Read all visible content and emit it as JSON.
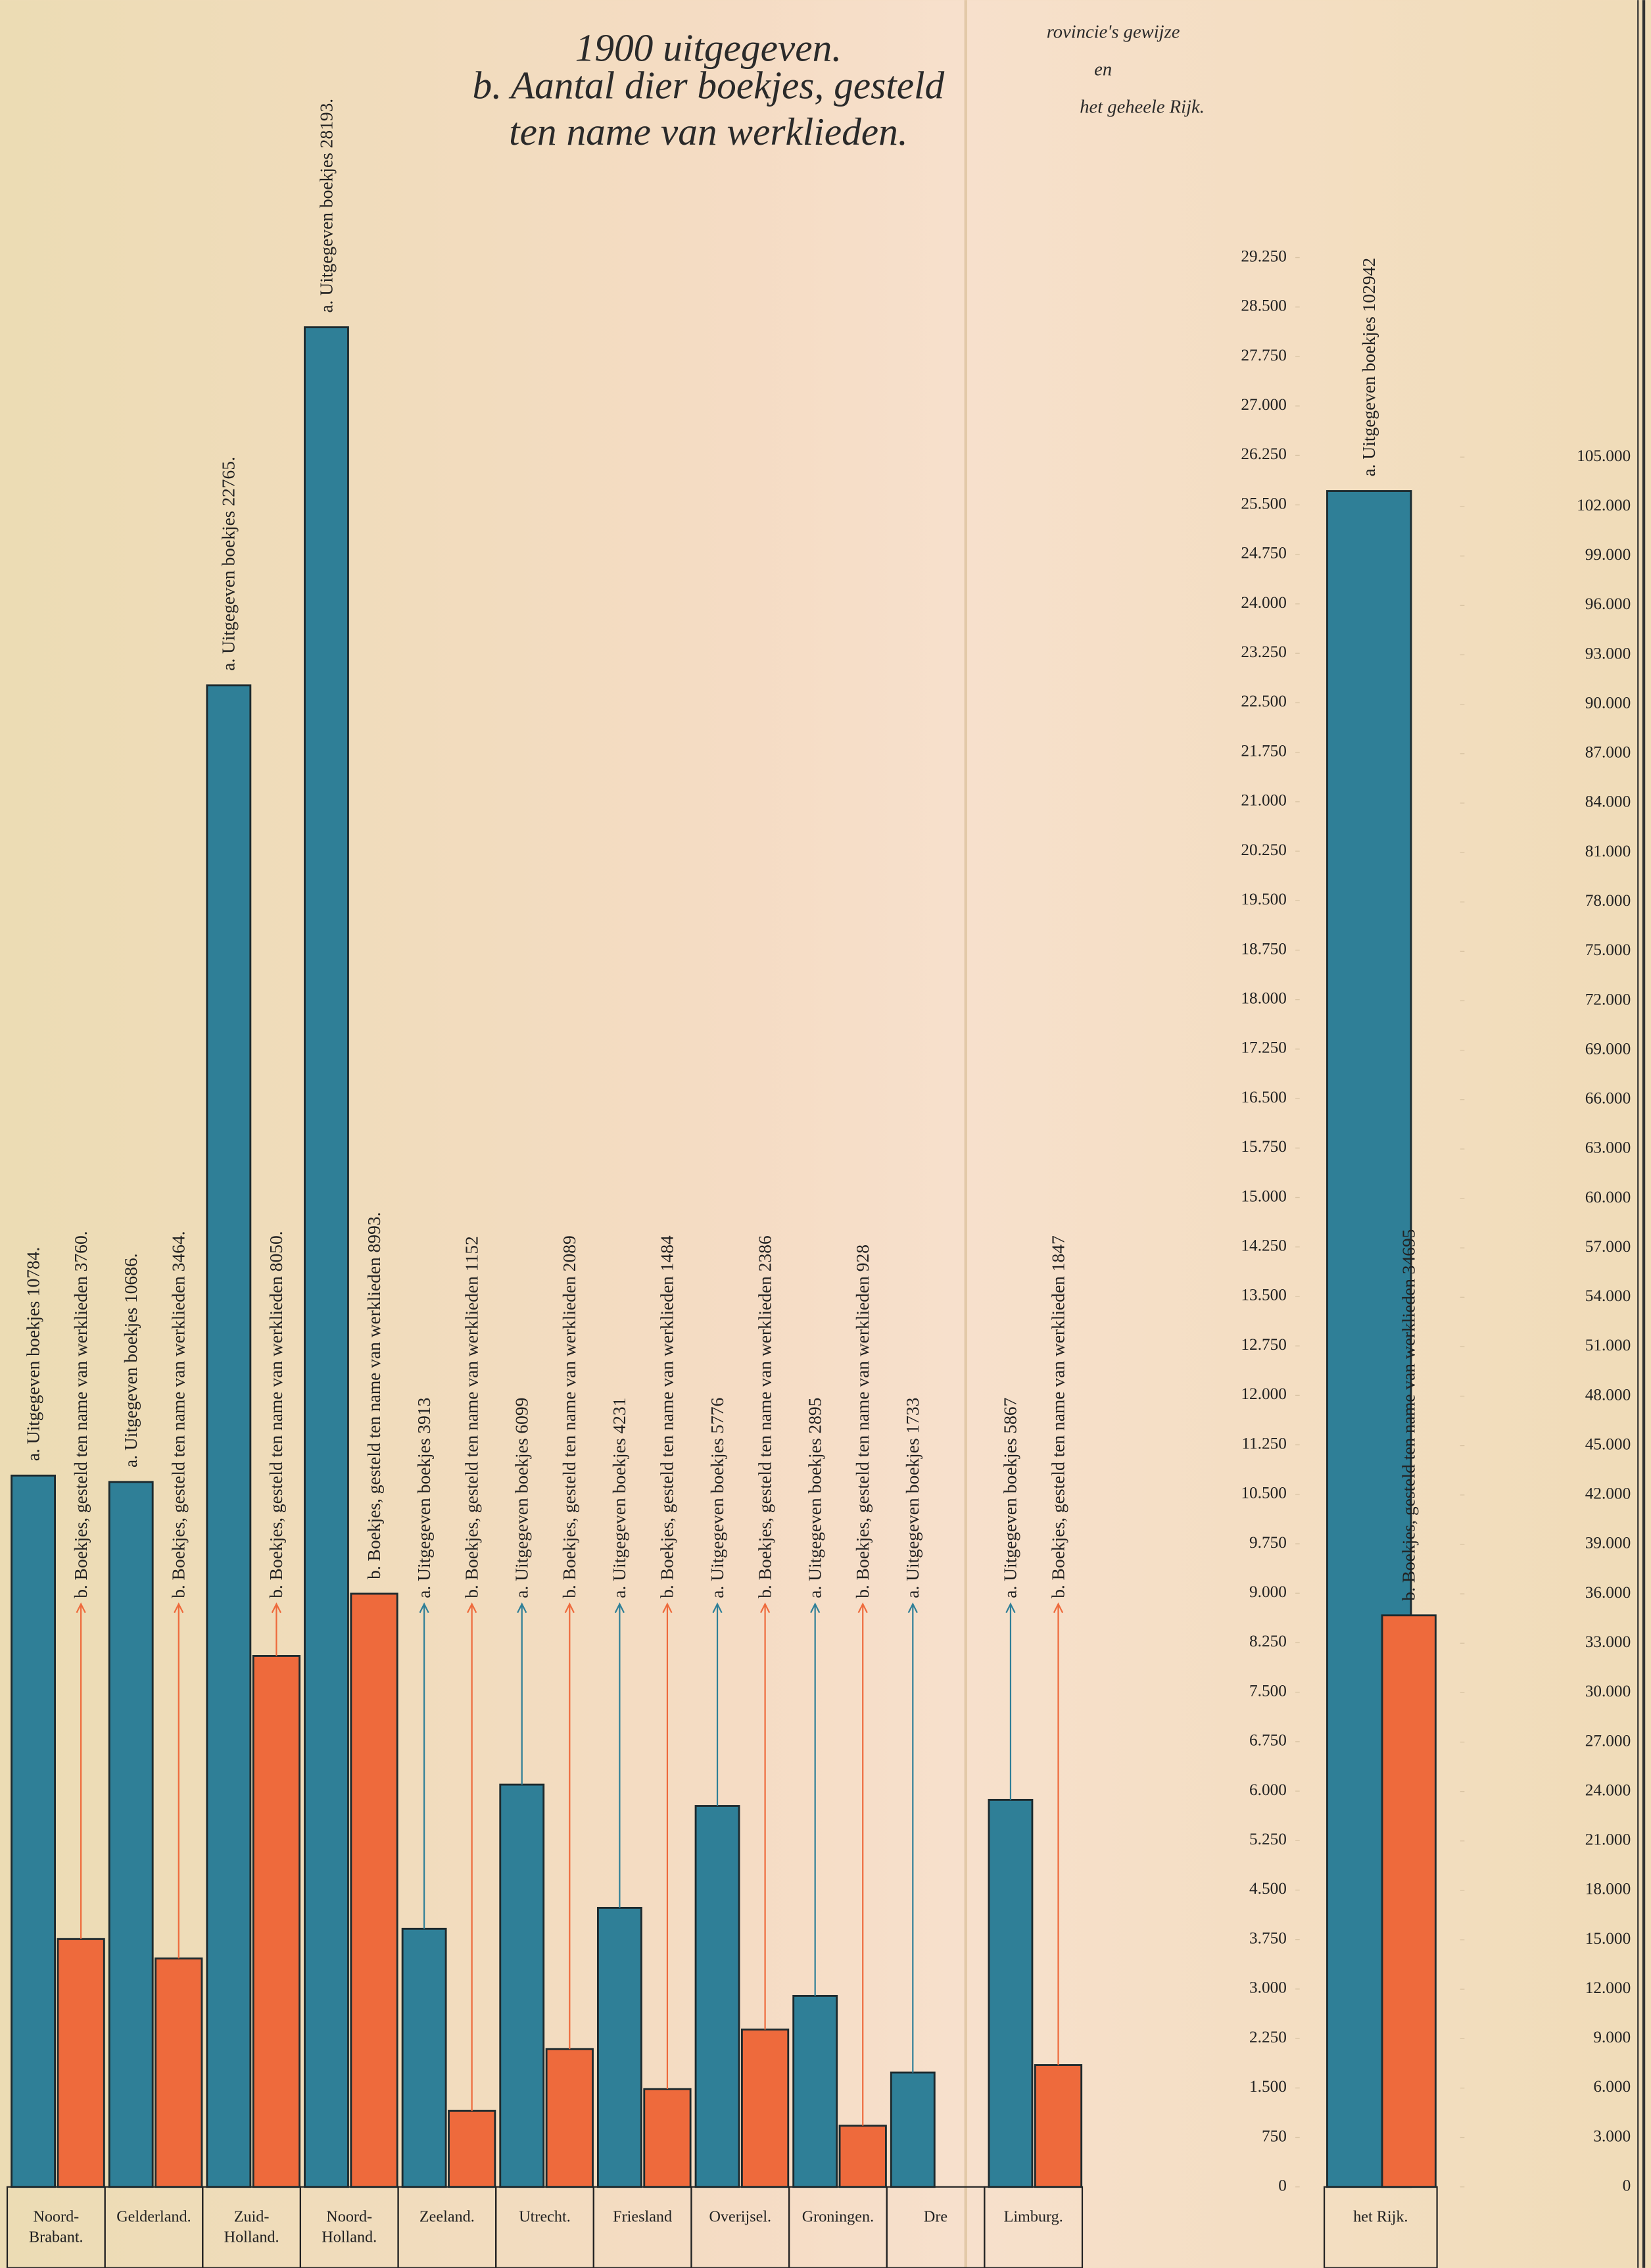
{
  "chart_data": [
    {
      "type": "bar",
      "title_lines": [
        "1900 uitgegeven.",
        "b. Aantal dier boekjes, gesteld",
        "ten name van werklieden."
      ],
      "subtitle_lines": [
        "rovincie's gewijze",
        "en",
        "het geheele Rijk."
      ],
      "categories": [
        "Noord-Brabant.",
        "Gelderland.",
        "Zuid-Holland.",
        "Noord-Holland.",
        "Zeeland.",
        "Utrecht.",
        "Friesland",
        "Overijsel.",
        "Groningen.",
        "Dre",
        "Limburg."
      ],
      "series": [
        {
          "color": "#2f7f97",
          "values": [
            10784,
            10686,
            22765,
            28193,
            3913,
            6099,
            4231,
            5776,
            2895,
            1733,
            5867
          ],
          "value_labels": [
            "a. Uitgegeven boekjes 10784.",
            "a. Uitgegeven boekjes 10686.",
            "a. Uitgegeven boekjes 22765.",
            "a. Uitgegeven boekjes 28193.",
            "a. Uitgegeven boekjes 3913",
            "a. Uitgegeven boekjes 6099",
            "a. Uitgegeven boekjes 4231",
            "a. Uitgegeven boekjes 5776",
            "a. Uitgegeven boekjes 2895",
            "a. Uitgegeven boekjes 1733",
            "a. Uitgegeven boekjes 5867"
          ]
        },
        {
          "color": "#ee6a3c",
          "values": [
            3760,
            3464,
            8050,
            8993,
            1152,
            2089,
            1484,
            2386,
            928,
            null,
            1847
          ],
          "value_labels": [
            "b. Boekjes, gesteld ten name van werklieden 3760.",
            "b. Boekjes, gesteld ten name van werklieden 3464.",
            "b. Boekjes, gesteld ten name van werklieden 8050.",
            "b. Boekjes, gesteld ten name van werklieden 8993.",
            "b. Boekjes, gesteld ten name van werklieden 1152",
            "b. Boekjes, gesteld ten name van werklieden 2089",
            "b. Boekjes, gesteld ten name van werklieden 1484",
            "b. Boekjes, gesteld ten name van werklieden 2386",
            "b. Boekjes, gesteld ten name van werklieden 928",
            null,
            "b. Boekjes, gesteld ten name van werklieden 1847"
          ]
        }
      ],
      "ylim": [
        0,
        29250
      ],
      "yticks": [
        0,
        750,
        {
          "value": 1500,
          "label": "1.500"
        },
        {
          "value": 2250,
          "label": "2.250"
        },
        {
          "value": 3000,
          "label": "3.000"
        },
        {
          "value": 3750,
          "label": "3.750"
        },
        {
          "value": 4500,
          "label": "4.500"
        },
        {
          "value": 5250,
          "label": "5.250"
        },
        {
          "value": 6000,
          "label": "6.000"
        },
        {
          "value": 6750,
          "label": "6.750"
        },
        {
          "value": 7500,
          "label": "7.500"
        },
        {
          "value": 8250,
          "label": "8.250"
        },
        {
          "value": 9000,
          "label": "9.000"
        },
        {
          "value": 9750,
          "label": "9.750"
        },
        {
          "value": 10500,
          "label": "10.500"
        },
        {
          "value": 11250,
          "label": "11.250"
        },
        {
          "value": 12000,
          "label": "12.000"
        },
        {
          "value": 12750,
          "label": "12.750"
        },
        {
          "value": 13500,
          "label": "13.500"
        },
        {
          "value": 14250,
          "label": "14.250"
        },
        {
          "value": 15000,
          "label": "15.000"
        },
        {
          "value": 15750,
          "label": "15.750"
        },
        {
          "value": 16500,
          "label": "16.500"
        },
        {
          "value": 17250,
          "label": "17.250"
        },
        {
          "value": 18000,
          "label": "18.000"
        },
        {
          "value": 18750,
          "label": "18.750"
        },
        {
          "value": 19500,
          "label": "19.500"
        },
        {
          "value": 20250,
          "label": "20.250"
        },
        {
          "value": 21000,
          "label": "21.000"
        },
        {
          "value": 21750,
          "label": "21.750"
        },
        {
          "value": 22500,
          "label": "22.500"
        },
        {
          "value": 23250,
          "label": "23.250"
        },
        {
          "value": 24000,
          "label": "24.000"
        },
        {
          "value": 24750,
          "label": "24.750"
        },
        {
          "value": 25500,
          "label": "25.500"
        },
        {
          "value": 26250,
          "label": "26.250"
        },
        {
          "value": 27000,
          "label": "27.000"
        },
        {
          "value": 27750,
          "label": "27.750"
        },
        {
          "value": 28500,
          "label": "28.500"
        },
        {
          "value": 29250,
          "label": "29.250"
        }
      ]
    },
    {
      "type": "bar",
      "categories": [
        "het Rijk."
      ],
      "series": [
        {
          "color": "#2f7f97",
          "values": [
            102942
          ],
          "value_labels": [
            "a. Uitgegeven boekjes 102942"
          ]
        },
        {
          "color": "#ee6a3c",
          "values": [
            34695
          ],
          "value_labels": [
            "b. Boekjes, gesteld ten name van werklieden 34695"
          ]
        }
      ],
      "ylim": [
        0,
        105000
      ],
      "yticks": [
        0,
        {
          "value": 3000,
          "label": "3.000"
        },
        {
          "value": 6000,
          "label": "6.000"
        },
        {
          "value": 9000,
          "label": "9.000"
        },
        {
          "value": 12000,
          "label": "12.000"
        },
        {
          "value": 15000,
          "label": "15.000"
        },
        {
          "value": 18000,
          "label": "18.000"
        },
        {
          "value": 21000,
          "label": "21.000"
        },
        {
          "value": 24000,
          "label": "24.000"
        },
        {
          "value": 27000,
          "label": "27.000"
        },
        {
          "value": 30000,
          "label": "30.000"
        },
        {
          "value": 33000,
          "label": "33.000"
        },
        {
          "value": 36000,
          "label": "36.000"
        },
        {
          "value": 39000,
          "label": "39.000"
        },
        {
          "value": 42000,
          "label": "42.000"
        },
        {
          "value": 45000,
          "label": "45.000"
        },
        {
          "value": 48000,
          "label": "48.000"
        },
        {
          "value": 51000,
          "label": "51.000"
        },
        {
          "value": 54000,
          "label": "54.000"
        },
        {
          "value": 57000,
          "label": "57.000"
        },
        {
          "value": 60000,
          "label": "60.000"
        },
        {
          "value": 63000,
          "label": "63.000"
        },
        {
          "value": 66000,
          "label": "66.000"
        },
        {
          "value": 69000,
          "label": "69.000"
        },
        {
          "value": 72000,
          "label": "72.000"
        },
        {
          "value": 75000,
          "label": "75.000"
        },
        {
          "value": 78000,
          "label": "78.000"
        },
        {
          "value": 81000,
          "label": "81.000"
        },
        {
          "value": 84000,
          "label": "84.000"
        },
        {
          "value": 87000,
          "label": "87.000"
        },
        {
          "value": 90000,
          "label": "90.000"
        },
        {
          "value": 93000,
          "label": "93.000"
        },
        {
          "value": 96000,
          "label": "96.000"
        },
        {
          "value": 99000,
          "label": "99.000"
        },
        {
          "value": 102000,
          "label": "102.000"
        },
        {
          "value": 105000,
          "label": "105.000"
        }
      ]
    }
  ]
}
